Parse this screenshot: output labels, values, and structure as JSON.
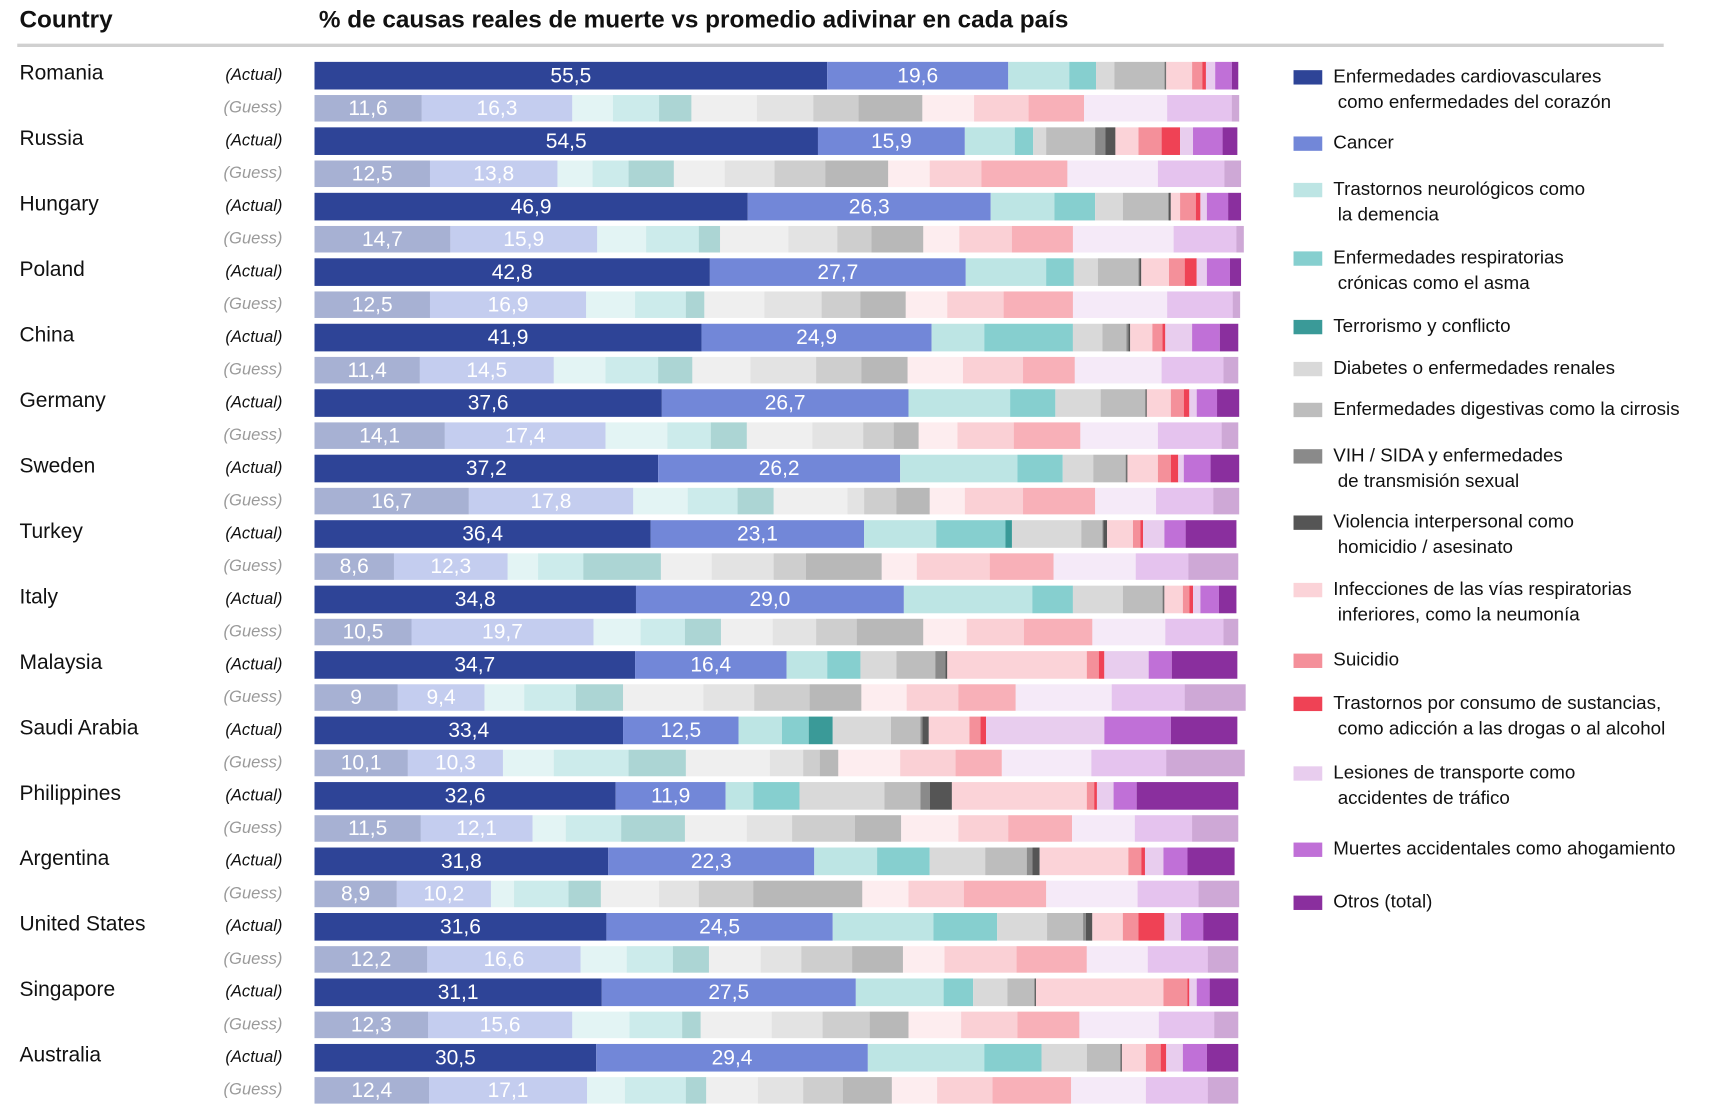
{
  "chart_data": {
    "type": "stacked_bar",
    "title": "% de causas reales de muerte vs promedio adivinar en cada país",
    "row_header": "Country",
    "row_labels": {
      "actual": "(Actual)",
      "guess": "(Guess)"
    },
    "xlim": [
      0,
      100
    ],
    "guess_opacity": 0.42,
    "series": [
      {
        "name": "Enfermedades cardiovasculares\ncomo enfermedades del corazón",
        "color": "#2e4497"
      },
      {
        "name": "Cancer",
        "color": "#7287d8"
      },
      {
        "name": "Trastornos neurológicos como\nla demencia",
        "color": "#bde5e4"
      },
      {
        "name": "Enfermedades respiratorias\ncrónicas como el asma",
        "color": "#86cfcf"
      },
      {
        "name": "Terrorismo y conflicto",
        "color": "#3a9a98"
      },
      {
        "name": "Diabetes o enfermedades renales",
        "color": "#d9d9d9"
      },
      {
        "name": "Enfermedades digestivas como la cirrosis",
        "color": "#bdbdbd"
      },
      {
        "name": "VIH / SIDA y enfermedades\nde transmisión sexual",
        "color": "#8a8a8a"
      },
      {
        "name": "Violencia interpersonal como\nhomicidio / asesinato",
        "color": "#555555"
      },
      {
        "name": "Infecciones de las vías respiratorias\ninferiores, como la neumonía",
        "color": "#fbd3d8"
      },
      {
        "name": "Suicidio",
        "color": "#f4909a"
      },
      {
        "name": "Trastornos por consumo de sustancias,\ncomo adicción a las drogas o al alcohol",
        "color": "#ef4255"
      },
      {
        "name": "Lesiones de transporte como\naccidentes de tráfico",
        "color": "#e8cdee"
      },
      {
        "name": "Muertes accidentales como ahogamiento",
        "color": "#c070d7"
      },
      {
        "name": "Otros (total)",
        "color": "#8a2f9e"
      }
    ],
    "rows": [
      {
        "country": "Romania",
        "actual": [
          55.5,
          19.6,
          6.6,
          2.9,
          0,
          2.0,
          5.4,
          0.1,
          0.1,
          2.8,
          1.1,
          0.4,
          1.0,
          1.8,
          0.7
        ],
        "actual_labels": [
          "55,5",
          "19,6",
          null,
          null,
          null,
          null,
          null,
          null,
          null,
          null,
          null,
          null,
          null,
          null,
          null
        ],
        "guess": [
          11.6,
          16.3,
          4.4,
          5.0,
          3.5,
          7.1,
          6.1,
          4.9,
          6.9,
          5.6,
          5.9,
          6.0,
          9.0,
          7.0,
          0.8
        ],
        "guess_labels": [
          "11,6",
          "16,3",
          null,
          null,
          null,
          null,
          null,
          null,
          null,
          null,
          null,
          null,
          null,
          null,
          null
        ]
      },
      {
        "country": "Russia",
        "actual": [
          54.5,
          15.9,
          5.4,
          2.0,
          0,
          1.4,
          5.3,
          1.1,
          1.1,
          2.5,
          2.5,
          2.0,
          1.4,
          3.2,
          1.6
        ],
        "actual_labels": [
          "54,5",
          "15,9",
          null,
          null,
          null,
          null,
          null,
          null,
          null,
          null,
          null,
          null,
          null,
          null,
          null
        ],
        "guess": [
          12.5,
          13.8,
          3.8,
          3.9,
          4.9,
          5.5,
          5.4,
          5.5,
          6.8,
          4.5,
          5.6,
          9.3,
          9.8,
          7.2,
          1.8
        ],
        "guess_labels": [
          "12,5",
          "13,8",
          null,
          null,
          null,
          null,
          null,
          null,
          null,
          null,
          null,
          null,
          null,
          null,
          null
        ]
      },
      {
        "country": "Hungary",
        "actual": [
          46.9,
          26.3,
          6.9,
          4.4,
          0,
          3.0,
          4.9,
          0.1,
          0.2,
          1.0,
          1.7,
          0.5,
          0.7,
          2.3,
          1.4
        ],
        "actual_labels": [
          "46,9",
          "26,3",
          null,
          null,
          null,
          null,
          null,
          null,
          null,
          null,
          null,
          null,
          null,
          null,
          null
        ],
        "guess": [
          14.7,
          15.9,
          5.3,
          5.7,
          2.3,
          7.4,
          5.3,
          3.7,
          5.6,
          3.9,
          5.7,
          6.6,
          10.9,
          6.8,
          0.8
        ],
        "guess_labels": [
          "14,7",
          "15,9",
          null,
          null,
          null,
          null,
          null,
          null,
          null,
          null,
          null,
          null,
          null,
          null,
          null
        ]
      },
      {
        "country": "Poland",
        "actual": [
          42.8,
          27.7,
          8.7,
          3.0,
          0,
          2.6,
          4.4,
          0.1,
          0.2,
          3.0,
          1.7,
          1.3,
          1.1,
          2.5,
          1.2
        ],
        "actual_labels": [
          "42,8",
          "27,7",
          null,
          null,
          null,
          null,
          null,
          null,
          null,
          null,
          null,
          null,
          null,
          null,
          null
        ],
        "guess": [
          12.5,
          16.9,
          5.3,
          5.5,
          2.0,
          6.5,
          6.2,
          4.2,
          4.9,
          4.5,
          6.1,
          7.5,
          10.2,
          7.1,
          0.8
        ],
        "guess_labels": [
          "12,5",
          "16,9",
          null,
          null,
          null,
          null,
          null,
          null,
          null,
          null,
          null,
          null,
          null,
          null,
          null
        ]
      },
      {
        "country": "China",
        "actual": [
          41.9,
          24.9,
          5.7,
          9.6,
          0,
          3.2,
          2.6,
          0.2,
          0.2,
          2.4,
          1.1,
          0.3,
          2.9,
          3.0,
          2.0
        ],
        "actual_labels": [
          "41,9",
          "24,9",
          null,
          null,
          null,
          null,
          null,
          null,
          null,
          null,
          null,
          null,
          null,
          null,
          null
        ],
        "guess": [
          11.4,
          14.5,
          5.6,
          5.7,
          3.7,
          6.3,
          7.1,
          4.9,
          5.0,
          6.0,
          6.5,
          5.6,
          9.4,
          6.7,
          1.6
        ],
        "guess_labels": [
          "11,4",
          "14,5",
          null,
          null,
          null,
          null,
          null,
          null,
          null,
          null,
          null,
          null,
          null,
          null,
          null
        ]
      },
      {
        "country": "Germany",
        "actual": [
          37.6,
          26.7,
          11.0,
          4.9,
          0,
          4.9,
          4.8,
          0.1,
          0.1,
          2.6,
          1.4,
          0.6,
          0.8,
          2.2,
          2.4
        ],
        "actual_labels": [
          "37,6",
          "26,7",
          null,
          null,
          null,
          null,
          null,
          null,
          null,
          null,
          null,
          null,
          null,
          null,
          null
        ],
        "guess": [
          14.1,
          17.4,
          6.7,
          4.7,
          3.9,
          7.1,
          5.5,
          3.3,
          2.7,
          4.2,
          6.1,
          7.2,
          8.4,
          6.9,
          1.8
        ],
        "guess_labels": [
          "14,1",
          "17,4",
          null,
          null,
          null,
          null,
          null,
          null,
          null,
          null,
          null,
          null,
          null,
          null,
          null
        ]
      },
      {
        "country": "Sweden",
        "actual": [
          37.2,
          26.2,
          12.7,
          4.9,
          0,
          3.3,
          3.5,
          0.1,
          0.1,
          3.3,
          1.4,
          0.8,
          0.6,
          2.9,
          3.1
        ],
        "actual_labels": [
          "37,2",
          "26,2",
          null,
          null,
          null,
          null,
          null,
          null,
          null,
          null,
          null,
          null,
          null,
          null,
          null
        ],
        "guess": [
          16.7,
          17.8,
          5.9,
          5.4,
          3.9,
          8.0,
          1.8,
          3.5,
          3.6,
          3.8,
          6.3,
          7.8,
          6.6,
          6.2,
          2.8
        ],
        "guess_labels": [
          "16,7",
          "17,8",
          null,
          null,
          null,
          null,
          null,
          null,
          null,
          null,
          null,
          null,
          null,
          null,
          null
        ]
      },
      {
        "country": "Turkey",
        "actual": [
          36.4,
          23.1,
          7.8,
          7.5,
          0.7,
          7.5,
          2.3,
          0.1,
          0.4,
          2.8,
          0.8,
          0.3,
          2.3,
          2.3,
          5.5
        ],
        "actual_labels": [
          "36,4",
          "23,1",
          null,
          null,
          null,
          null,
          null,
          null,
          null,
          null,
          null,
          null,
          null,
          null,
          null
        ],
        "guess": [
          8.6,
          12.3,
          3.3,
          4.9,
          8.4,
          5.5,
          6.7,
          3.5,
          8.2,
          3.8,
          7.9,
          6.9,
          8.9,
          5.7,
          5.4
        ],
        "guess_labels": [
          "8,6",
          "12,3",
          null,
          null,
          null,
          null,
          null,
          null,
          null,
          null,
          null,
          null,
          null,
          null,
          null
        ]
      },
      {
        "country": "Italy",
        "actual": [
          34.8,
          29.0,
          13.9,
          4.4,
          0,
          5.4,
          4.3,
          0.1,
          0.1,
          2.0,
          0.7,
          0.4,
          0.8,
          2.0,
          1.9
        ],
        "actual_labels": [
          "34,8",
          "29,0",
          null,
          null,
          null,
          null,
          null,
          null,
          null,
          null,
          null,
          null,
          null,
          null,
          null
        ],
        "guess": [
          10.5,
          19.7,
          5.1,
          4.8,
          3.9,
          5.6,
          4.7,
          4.4,
          7.2,
          4.7,
          6.2,
          7.4,
          7.9,
          6.3,
          1.6
        ],
        "guess_labels": [
          "10,5",
          "19,7",
          null,
          null,
          null,
          null,
          null,
          null,
          null,
          null,
          null,
          null,
          null,
          null,
          null
        ]
      },
      {
        "country": "Malaysia",
        "actual": [
          34.7,
          16.4,
          4.4,
          3.6,
          0,
          3.9,
          4.2,
          1.1,
          0.2,
          15.1,
          1.3,
          0.6,
          4.8,
          2.5,
          7.1
        ],
        "actual_labels": [
          "34,7",
          "16,4",
          null,
          null,
          null,
          null,
          null,
          null,
          null,
          null,
          null,
          null,
          null,
          null,
          null
        ],
        "guess": [
          9,
          9.4,
          4.3,
          5.6,
          5.1,
          8.7,
          5.5,
          6.0,
          5.6,
          4.9,
          5.6,
          6.2,
          10.4,
          7.9,
          6.6
        ],
        "guess_labels": [
          "9",
          "9,4",
          null,
          null,
          null,
          null,
          null,
          null,
          null,
          null,
          null,
          null,
          null,
          null,
          null
        ]
      },
      {
        "country": "Saudi Arabia",
        "actual": [
          33.4,
          12.5,
          4.7,
          2.9,
          2.6,
          6.3,
          3.2,
          0.2,
          0.7,
          4.4,
          1.2,
          0.6,
          12.8,
          7.2,
          7.2
        ],
        "actual_labels": [
          "33,4",
          "12,5",
          null,
          null,
          null,
          null,
          null,
          null,
          null,
          null,
          null,
          null,
          null,
          null,
          null
        ],
        "guess": [
          10.1,
          10.3,
          5.5,
          8.1,
          6.2,
          9.1,
          3.6,
          1.8,
          2.0,
          6.7,
          6.0,
          5.0,
          9.7,
          8.1,
          8.5
        ],
        "guess_labels": [
          "10,1",
          "10,3",
          null,
          null,
          null,
          null,
          null,
          null,
          null,
          null,
          null,
          null,
          null,
          null,
          null
        ]
      },
      {
        "country": "Philippines",
        "actual": [
          32.6,
          11.9,
          3.0,
          5.0,
          0,
          9.2,
          3.9,
          1.0,
          2.4,
          14.6,
          0.8,
          0.3,
          1.8,
          2.5,
          11.0
        ],
        "actual_labels": [
          "32,6",
          "11,9",
          null,
          null,
          null,
          null,
          null,
          null,
          null,
          null,
          null,
          null,
          null,
          null,
          null
        ],
        "guess": [
          11.5,
          12.1,
          3.6,
          6.0,
          6.9,
          6.7,
          4.9,
          6.8,
          5.0,
          6.2,
          5.4,
          6.9,
          6.8,
          6.2,
          5.0
        ],
        "guess_labels": [
          "11,5",
          "12,1",
          null,
          null,
          null,
          null,
          null,
          null,
          null,
          null,
          null,
          null,
          null,
          null,
          null
        ]
      },
      {
        "country": "Argentina",
        "actual": [
          31.8,
          22.3,
          6.8,
          5.7,
          0,
          6.0,
          4.5,
          0.6,
          0.8,
          9.6,
          1.4,
          0.4,
          2.0,
          2.6,
          5.1
        ],
        "actual_labels": [
          "31,8",
          "22,3",
          null,
          null,
          null,
          null,
          null,
          null,
          null,
          null,
          null,
          null,
          null,
          null,
          null
        ],
        "guess": [
          8.9,
          10.2,
          2.5,
          5.9,
          3.5,
          6.3,
          4.3,
          5.9,
          11.8,
          5.0,
          6.0,
          8.9,
          9.9,
          6.6,
          4.4
        ],
        "guess_labels": [
          "8,9",
          "10,2",
          null,
          null,
          null,
          null,
          null,
          null,
          null,
          null,
          null,
          null,
          null,
          null,
          null
        ]
      },
      {
        "country": "United States",
        "actual": [
          31.6,
          24.5,
          10.9,
          6.9,
          0,
          5.4,
          3.9,
          0.3,
          0.7,
          3.3,
          1.7,
          2.8,
          1.8,
          2.4,
          3.8
        ],
        "actual_labels": [
          "31,6",
          "24,5",
          null,
          null,
          null,
          null,
          null,
          null,
          null,
          null,
          null,
          null,
          null,
          null,
          null
        ],
        "guess": [
          12.2,
          16.6,
          5.0,
          5.0,
          3.9,
          5.6,
          4.4,
          5.5,
          5.5,
          4.5,
          7.8,
          7.6,
          6.6,
          6.5,
          3.3
        ],
        "guess_labels": [
          "12,2",
          "16,6",
          null,
          null,
          null,
          null,
          null,
          null,
          null,
          null,
          null,
          null,
          null,
          null,
          null
        ]
      },
      {
        "country": "Singapore",
        "actual": [
          31.1,
          27.5,
          9.5,
          3.2,
          0,
          3.7,
          2.9,
          0.1,
          0.1,
          13.8,
          2.6,
          0.2,
          0.8,
          1.4,
          3.1
        ],
        "actual_labels": [
          "31,1",
          "27,5",
          null,
          null,
          null,
          null,
          null,
          null,
          null,
          null,
          null,
          null,
          null,
          null,
          null
        ],
        "guess": [
          12.3,
          15.6,
          6.2,
          5.7,
          2.0,
          7.7,
          5.5,
          5.1,
          4.2,
          5.7,
          6.1,
          6.7,
          8.6,
          6.0,
          2.6
        ],
        "guess_labels": [
          "12,3",
          "15,6",
          null,
          null,
          null,
          null,
          null,
          null,
          null,
          null,
          null,
          null,
          null,
          null,
          null
        ]
      },
      {
        "country": "Australia",
        "actual": [
          30.5,
          29.4,
          12.6,
          6.2,
          0,
          4.9,
          3.6,
          0.1,
          0.1,
          2.6,
          1.6,
          0.6,
          1.8,
          2.6,
          3.4
        ],
        "actual_labels": [
          "30,5",
          "29,4",
          null,
          null,
          null,
          null,
          null,
          null,
          null,
          null,
          null,
          null,
          null,
          null,
          null
        ],
        "guess": [
          12.4,
          17.1,
          4.1,
          6.6,
          2.2,
          5.6,
          4.9,
          4.3,
          5.3,
          4.9,
          6.0,
          8.5,
          8.1,
          6.7,
          3.3
        ],
        "guess_labels": [
          "12,4",
          "17,1",
          null,
          null,
          null,
          null,
          null,
          null,
          null,
          null,
          null,
          null,
          null,
          null,
          null
        ]
      }
    ]
  }
}
